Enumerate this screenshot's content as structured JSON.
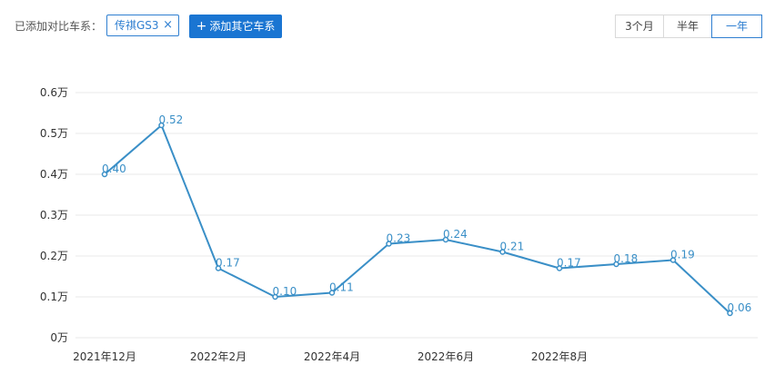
{
  "toolbar": {
    "compare_label": "已添加对比车系：",
    "series_tag": "传祺GS3",
    "series_tag_close": "×",
    "add_button_icon": "+",
    "add_button_label": "添加其它车系",
    "ranges": [
      "3个月",
      "半年",
      "一年"
    ],
    "active_range": "一年"
  },
  "colors": {
    "accent": "#1a75d2",
    "line": "#3a8fc7",
    "grid": "#e8e8e8",
    "axis_text": "#333333",
    "label_text": "#3a8fc7"
  },
  "chart_data": {
    "type": "line",
    "title": "",
    "xlabel": "",
    "ylabel": "",
    "ylim": [
      0,
      0.6
    ],
    "y_ticks": [
      "0万",
      "0.1万",
      "0.2万",
      "0.3万",
      "0.4万",
      "0.5万",
      "0.6万"
    ],
    "y_tick_values": [
      0,
      0.1,
      0.2,
      0.3,
      0.4,
      0.5,
      0.6
    ],
    "x_tick_labels": [
      "2021年12月",
      "",
      "2022年2月",
      "",
      "2022年4月",
      "",
      "2022年6月",
      "",
      "2022年8月",
      "",
      "",
      ""
    ],
    "series": [
      {
        "name": "传祺GS3",
        "values": [
          0.4,
          0.52,
          0.17,
          0.1,
          0.11,
          0.23,
          0.24,
          0.21,
          0.17,
          0.18,
          0.19,
          0.06
        ],
        "labels": [
          "0.40",
          "0.52",
          "0.17",
          "0.10",
          "0.11",
          "0.23",
          "0.24",
          "0.21",
          "0.17",
          "0.18",
          "0.19",
          "0.06"
        ]
      }
    ],
    "grid": true,
    "legend": "none"
  }
}
